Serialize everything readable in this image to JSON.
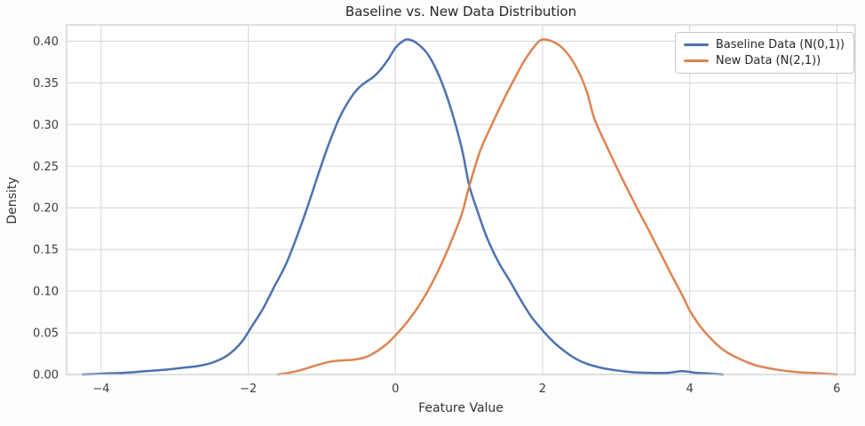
{
  "figure": {
    "title": "Baseline vs. New Data Distribution",
    "xlabel": "Feature Value",
    "ylabel": "Density"
  },
  "colors": {
    "baseline_line": "#4C72B0",
    "new_line": "#DD8452",
    "grid": "#d9d9d9",
    "spine": "#cccccc",
    "plot_background": "#ffffff",
    "text": "#3b3b3b"
  },
  "chart_data": {
    "type": "line",
    "subtype": "kde-density",
    "title": "Baseline vs. New Data Distribution",
    "xlabel": "Feature Value",
    "ylabel": "Density",
    "xlim": [
      -4.47,
      6.25
    ],
    "ylim": [
      0,
      0.4196
    ],
    "grid": true,
    "legend_position": "upper right",
    "x_ticks": [
      -4,
      -2,
      0,
      2,
      4,
      6
    ],
    "x_tick_labels": [
      "−4",
      "−2",
      "0",
      "2",
      "4",
      "6"
    ],
    "y_ticks": [
      0.0,
      0.05,
      0.1,
      0.15,
      0.2,
      0.25,
      0.3,
      0.35,
      0.4
    ],
    "y_tick_labels": [
      "0.00",
      "0.05",
      "0.10",
      "0.15",
      "0.20",
      "0.25",
      "0.30",
      "0.35",
      "0.40"
    ],
    "series": [
      {
        "name": "Baseline Data (N(0,1))",
        "color": "#4C72B0",
        "peak": [
          0.18,
          0.402
        ],
        "points": [
          [
            -4.25,
            0.0
          ],
          [
            -4.0,
            0.001
          ],
          [
            -3.7,
            0.002
          ],
          [
            -3.4,
            0.004
          ],
          [
            -3.1,
            0.006
          ],
          [
            -2.9,
            0.008
          ],
          [
            -2.7,
            0.01
          ],
          [
            -2.5,
            0.014
          ],
          [
            -2.3,
            0.022
          ],
          [
            -2.1,
            0.038
          ],
          [
            -1.95,
            0.058
          ],
          [
            -1.8,
            0.079
          ],
          [
            -1.65,
            0.105
          ],
          [
            -1.5,
            0.13
          ],
          [
            -1.35,
            0.163
          ],
          [
            -1.2,
            0.2
          ],
          [
            -1.05,
            0.24
          ],
          [
            -0.9,
            0.278
          ],
          [
            -0.75,
            0.31
          ],
          [
            -0.6,
            0.333
          ],
          [
            -0.5,
            0.344
          ],
          [
            -0.4,
            0.351
          ],
          [
            -0.3,
            0.357
          ],
          [
            -0.2,
            0.366
          ],
          [
            -0.1,
            0.378
          ],
          [
            0.0,
            0.392
          ],
          [
            0.1,
            0.4
          ],
          [
            0.18,
            0.402
          ],
          [
            0.3,
            0.397
          ],
          [
            0.45,
            0.383
          ],
          [
            0.6,
            0.357
          ],
          [
            0.75,
            0.32
          ],
          [
            0.9,
            0.272
          ],
          [
            1.0,
            0.228
          ],
          [
            1.1,
            0.2
          ],
          [
            1.25,
            0.163
          ],
          [
            1.4,
            0.135
          ],
          [
            1.55,
            0.113
          ],
          [
            1.7,
            0.09
          ],
          [
            1.85,
            0.069
          ],
          [
            2.0,
            0.053
          ],
          [
            2.15,
            0.039
          ],
          [
            2.3,
            0.028
          ],
          [
            2.45,
            0.019
          ],
          [
            2.6,
            0.013
          ],
          [
            2.8,
            0.008
          ],
          [
            3.0,
            0.005
          ],
          [
            3.2,
            0.003
          ],
          [
            3.45,
            0.002
          ],
          [
            3.7,
            0.002
          ],
          [
            3.9,
            0.004
          ],
          [
            4.1,
            0.002
          ],
          [
            4.3,
            0.001
          ],
          [
            4.45,
            0.0
          ]
        ]
      },
      {
        "name": "New Data (N(2,1))",
        "color": "#DD8452",
        "peak": [
          2.0,
          0.402
        ],
        "points": [
          [
            -1.6,
            0.0
          ],
          [
            -1.45,
            0.002
          ],
          [
            -1.3,
            0.005
          ],
          [
            -1.15,
            0.009
          ],
          [
            -1.0,
            0.013
          ],
          [
            -0.85,
            0.016
          ],
          [
            -0.7,
            0.017
          ],
          [
            -0.55,
            0.018
          ],
          [
            -0.4,
            0.021
          ],
          [
            -0.25,
            0.028
          ],
          [
            -0.1,
            0.038
          ],
          [
            0.0,
            0.047
          ],
          [
            0.15,
            0.062
          ],
          [
            0.3,
            0.08
          ],
          [
            0.45,
            0.102
          ],
          [
            0.6,
            0.128
          ],
          [
            0.75,
            0.158
          ],
          [
            0.9,
            0.192
          ],
          [
            1.0,
            0.225
          ],
          [
            1.15,
            0.268
          ],
          [
            1.3,
            0.298
          ],
          [
            1.45,
            0.326
          ],
          [
            1.6,
            0.352
          ],
          [
            1.75,
            0.376
          ],
          [
            1.9,
            0.395
          ],
          [
            2.0,
            0.402
          ],
          [
            2.15,
            0.399
          ],
          [
            2.3,
            0.389
          ],
          [
            2.45,
            0.37
          ],
          [
            2.6,
            0.34
          ],
          [
            2.7,
            0.308
          ],
          [
            2.85,
            0.278
          ],
          [
            3.0,
            0.25
          ],
          [
            3.15,
            0.223
          ],
          [
            3.3,
            0.197
          ],
          [
            3.45,
            0.172
          ],
          [
            3.6,
            0.146
          ],
          [
            3.75,
            0.12
          ],
          [
            3.9,
            0.095
          ],
          [
            4.0,
            0.077
          ],
          [
            4.15,
            0.057
          ],
          [
            4.3,
            0.042
          ],
          [
            4.45,
            0.03
          ],
          [
            4.6,
            0.022
          ],
          [
            4.75,
            0.016
          ],
          [
            4.9,
            0.011
          ],
          [
            5.05,
            0.008
          ],
          [
            5.25,
            0.005
          ],
          [
            5.45,
            0.003
          ],
          [
            5.65,
            0.002
          ],
          [
            5.85,
            0.001
          ],
          [
            6.0,
            0.0
          ]
        ]
      }
    ],
    "annotations": {
      "curves_cross_at": [
        1.0,
        0.225
      ]
    }
  }
}
